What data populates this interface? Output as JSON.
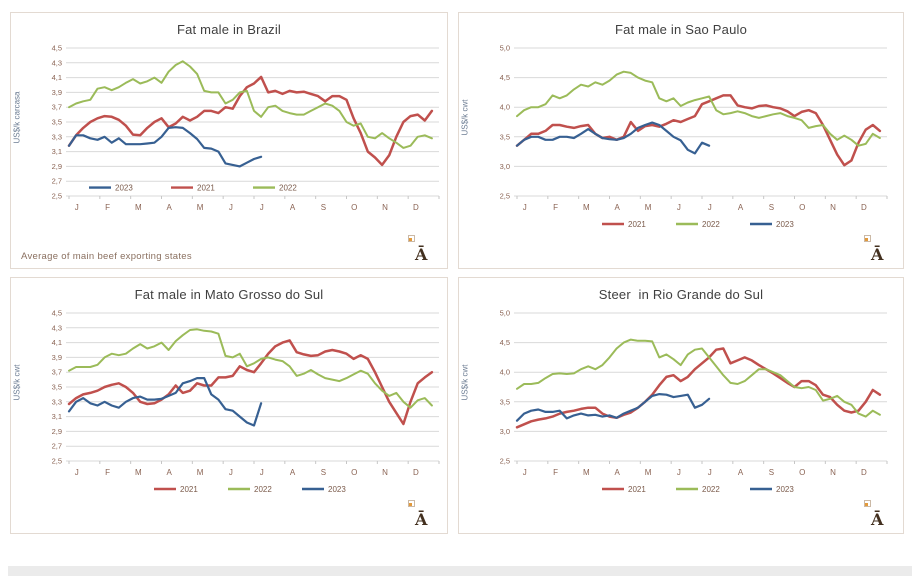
{
  "logo_glyph": "Ā",
  "colors": {
    "grid": "#d9d9d9",
    "axis_tick": "#c6c6c6",
    "tick_label": "#8a6353",
    "legend_label": "#7a5a4a",
    "title": "#404040",
    "y_axis_title": "#6f7f95",
    "panel_border": "#e3dad2",
    "logo": "#43301f",
    "bottom_band": "#ebebeb"
  },
  "chart_data": [
    {
      "type": "line",
      "title": "Fat male in Brazil",
      "ylabel": "US$/k carcasa",
      "xlabel": "",
      "ylim": [
        2.5,
        4.5
      ],
      "ytick_step": 0.2,
      "ytick_labels": [
        "2,5",
        "2,7",
        "2,9",
        "3,1",
        "3,3",
        "3,5",
        "3,7",
        "3,9",
        "4,1",
        "4,3",
        "4,5"
      ],
      "xtick_labels": [
        "J",
        "F",
        "M",
        "A",
        "M",
        "J",
        "J",
        "A",
        "S",
        "O",
        "N",
        "D"
      ],
      "weeks_per_year": 52,
      "grid": true,
      "legend_position": "inside-bottom-left",
      "legend_order": [
        "2023",
        "2021",
        "2022"
      ],
      "note": "Average  of main beef exporting states",
      "series": [
        {
          "name": "2021",
          "color": "#C0504D",
          "values": [
            3.18,
            3.32,
            3.42,
            3.5,
            3.55,
            3.58,
            3.57,
            3.53,
            3.45,
            3.33,
            3.32,
            3.42,
            3.5,
            3.55,
            3.43,
            3.48,
            3.57,
            3.52,
            3.57,
            3.65,
            3.65,
            3.62,
            3.7,
            3.68,
            3.85,
            3.97,
            4.02,
            4.11,
            3.9,
            3.92,
            3.88,
            3.92,
            3.9,
            3.91,
            3.88,
            3.85,
            3.78,
            3.85,
            3.85,
            3.8,
            3.55,
            3.35,
            3.1,
            3.02,
            2.92,
            3.05,
            3.3,
            3.5,
            3.58,
            3.6,
            3.52,
            3.65
          ]
        },
        {
          "name": "2022",
          "color": "#9BBB59",
          "values": [
            3.7,
            3.75,
            3.78,
            3.8,
            3.95,
            3.97,
            3.93,
            3.97,
            4.03,
            4.08,
            4.02,
            4.05,
            4.1,
            4.03,
            4.18,
            4.27,
            4.32,
            4.25,
            4.15,
            3.92,
            3.9,
            3.9,
            3.75,
            3.8,
            3.9,
            3.92,
            3.65,
            3.57,
            3.7,
            3.72,
            3.65,
            3.62,
            3.6,
            3.6,
            3.65,
            3.7,
            3.75,
            3.72,
            3.65,
            3.5,
            3.45,
            3.48,
            3.3,
            3.28,
            3.35,
            3.28,
            3.22,
            3.15,
            3.18,
            3.3,
            3.32,
            3.28
          ]
        },
        {
          "name": "2023",
          "color": "#376092",
          "values": [
            3.18,
            3.32,
            3.32,
            3.28,
            3.26,
            3.3,
            3.22,
            3.28,
            3.2,
            3.2,
            3.2,
            3.21,
            3.22,
            3.3,
            3.42,
            3.43,
            3.42,
            3.35,
            3.27,
            3.15,
            3.14,
            3.1,
            2.94,
            2.92,
            2.9,
            2.95,
            3.0,
            3.03
          ]
        }
      ]
    },
    {
      "type": "line",
      "title": "Fat male in Sao Paulo",
      "ylabel": "US$/k cwt",
      "xlabel": "",
      "ylim": [
        2.5,
        5.0
      ],
      "ytick_step": 0.5,
      "ytick_labels": [
        "2,5",
        "3,0",
        "3,5",
        "4,0",
        "4,5",
        "5,0"
      ],
      "xtick_labels": [
        "J",
        "F",
        "M",
        "A",
        "M",
        "J",
        "J",
        "A",
        "S",
        "O",
        "N",
        "D"
      ],
      "weeks_per_year": 52,
      "grid": true,
      "legend_position": "below-center",
      "legend_order": [
        "2021",
        "2022",
        "2023"
      ],
      "note": "",
      "series": [
        {
          "name": "2021",
          "color": "#C0504D",
          "values": [
            3.35,
            3.45,
            3.55,
            3.55,
            3.6,
            3.7,
            3.7,
            3.67,
            3.65,
            3.68,
            3.7,
            3.55,
            3.48,
            3.5,
            3.45,
            3.5,
            3.75,
            3.6,
            3.68,
            3.7,
            3.67,
            3.72,
            3.78,
            3.75,
            3.8,
            3.85,
            4.05,
            4.1,
            4.15,
            4.2,
            4.2,
            4.03,
            4.0,
            3.98,
            4.02,
            4.03,
            4.0,
            3.98,
            3.93,
            3.85,
            3.92,
            3.95,
            3.9,
            3.7,
            3.45,
            3.2,
            3.02,
            3.1,
            3.4,
            3.62,
            3.7,
            3.6
          ]
        },
        {
          "name": "2022",
          "color": "#9BBB59",
          "values": [
            3.85,
            3.95,
            4.0,
            4.0,
            4.05,
            4.2,
            4.15,
            4.2,
            4.3,
            4.38,
            4.35,
            4.42,
            4.38,
            4.45,
            4.55,
            4.6,
            4.58,
            4.5,
            4.45,
            4.42,
            4.15,
            4.1,
            4.15,
            4.02,
            4.08,
            4.12,
            4.15,
            4.18,
            3.95,
            3.88,
            3.9,
            3.93,
            3.9,
            3.85,
            3.82,
            3.85,
            3.88,
            3.9,
            3.85,
            3.82,
            3.78,
            3.65,
            3.68,
            3.7,
            3.55,
            3.45,
            3.52,
            3.45,
            3.35,
            3.38,
            3.55,
            3.48
          ]
        },
        {
          "name": "2023",
          "color": "#376092",
          "values": [
            3.35,
            3.45,
            3.5,
            3.5,
            3.45,
            3.45,
            3.5,
            3.5,
            3.48,
            3.55,
            3.63,
            3.55,
            3.48,
            3.46,
            3.45,
            3.48,
            3.55,
            3.65,
            3.7,
            3.74,
            3.7,
            3.6,
            3.5,
            3.44,
            3.28,
            3.22,
            3.4,
            3.35
          ]
        }
      ]
    },
    {
      "type": "line",
      "title": "Fat male in Mato Grosso do Sul",
      "ylabel": "US$/k cwt",
      "xlabel": "",
      "ylim": [
        2.5,
        4.5
      ],
      "ytick_step": 0.2,
      "ytick_labels": [
        "2,5",
        "2,7",
        "2,9",
        "3,1",
        "3,3",
        "3,5",
        "3,7",
        "3,9",
        "4,1",
        "4,3",
        "4,5"
      ],
      "xtick_labels": [
        "J",
        "F",
        "M",
        "A",
        "M",
        "J",
        "J",
        "A",
        "S",
        "O",
        "N",
        "D"
      ],
      "weeks_per_year": 52,
      "grid": true,
      "legend_position": "below-center",
      "legend_order": [
        "2021",
        "2022",
        "2023"
      ],
      "note": "",
      "series": [
        {
          "name": "2021",
          "color": "#C0504D",
          "values": [
            3.27,
            3.35,
            3.4,
            3.42,
            3.45,
            3.5,
            3.53,
            3.55,
            3.5,
            3.42,
            3.3,
            3.27,
            3.28,
            3.33,
            3.4,
            3.52,
            3.42,
            3.45,
            3.55,
            3.52,
            3.52,
            3.63,
            3.63,
            3.65,
            3.78,
            3.73,
            3.7,
            3.82,
            3.95,
            4.05,
            4.1,
            4.13,
            3.97,
            3.94,
            3.92,
            3.93,
            3.98,
            4.0,
            3.98,
            3.95,
            3.88,
            3.93,
            3.88,
            3.7,
            3.5,
            3.3,
            3.15,
            3.0,
            3.3,
            3.55,
            3.63,
            3.7
          ]
        },
        {
          "name": "2022",
          "color": "#9BBB59",
          "values": [
            3.72,
            3.77,
            3.77,
            3.77,
            3.8,
            3.9,
            3.95,
            3.93,
            3.95,
            4.02,
            4.08,
            4.02,
            4.05,
            4.1,
            4.0,
            4.12,
            4.2,
            4.27,
            4.28,
            4.26,
            4.25,
            4.22,
            3.92,
            3.9,
            3.95,
            3.78,
            3.82,
            3.88,
            3.9,
            3.87,
            3.85,
            3.78,
            3.65,
            3.68,
            3.73,
            3.67,
            3.62,
            3.6,
            3.58,
            3.62,
            3.67,
            3.72,
            3.68,
            3.55,
            3.45,
            3.38,
            3.42,
            3.3,
            3.22,
            3.32,
            3.35,
            3.25
          ]
        },
        {
          "name": "2023",
          "color": "#376092",
          "values": [
            3.17,
            3.3,
            3.35,
            3.28,
            3.25,
            3.3,
            3.25,
            3.22,
            3.3,
            3.35,
            3.37,
            3.33,
            3.33,
            3.34,
            3.38,
            3.42,
            3.55,
            3.58,
            3.62,
            3.62,
            3.4,
            3.33,
            3.2,
            3.18,
            3.1,
            3.02,
            2.98,
            3.28
          ]
        }
      ]
    },
    {
      "type": "line",
      "title": "Steer  in Rio Grande do Sul",
      "ylabel": "US$/k cwt",
      "xlabel": "",
      "ylim": [
        2.5,
        5.0
      ],
      "ytick_step": 0.5,
      "ytick_labels": [
        "2,5",
        "3,0",
        "3,5",
        "4,0",
        "4,5",
        "5,0"
      ],
      "xtick_labels": [
        "J",
        "F",
        "M",
        "A",
        "M",
        "J",
        "J",
        "A",
        "S",
        "O",
        "N",
        "D"
      ],
      "weeks_per_year": 52,
      "grid": true,
      "legend_position": "below-center",
      "legend_order": [
        "2021",
        "2022",
        "2023"
      ],
      "note": "",
      "series": [
        {
          "name": "2021",
          "color": "#C0504D",
          "values": [
            3.07,
            3.12,
            3.17,
            3.2,
            3.22,
            3.25,
            3.3,
            3.33,
            3.35,
            3.38,
            3.4,
            3.4,
            3.3,
            3.25,
            3.23,
            3.28,
            3.32,
            3.4,
            3.5,
            3.62,
            3.78,
            3.92,
            3.95,
            3.85,
            3.92,
            4.05,
            4.15,
            4.25,
            4.38,
            4.4,
            4.15,
            4.2,
            4.25,
            4.2,
            4.12,
            4.05,
            3.98,
            3.9,
            3.82,
            3.75,
            3.85,
            3.85,
            3.78,
            3.62,
            3.58,
            3.45,
            3.35,
            3.32,
            3.35,
            3.5,
            3.7,
            3.62
          ]
        },
        {
          "name": "2022",
          "color": "#9BBB59",
          "values": [
            3.72,
            3.8,
            3.8,
            3.82,
            3.9,
            3.97,
            3.98,
            3.97,
            3.98,
            4.05,
            4.1,
            4.05,
            4.12,
            4.25,
            4.4,
            4.5,
            4.55,
            4.53,
            4.53,
            4.52,
            4.25,
            4.3,
            4.22,
            4.12,
            4.3,
            4.38,
            4.4,
            4.25,
            4.1,
            3.95,
            3.82,
            3.8,
            3.85,
            3.95,
            4.05,
            4.05,
            4.0,
            3.95,
            3.85,
            3.75,
            3.73,
            3.75,
            3.7,
            3.52,
            3.55,
            3.6,
            3.5,
            3.45,
            3.3,
            3.25,
            3.35,
            3.28
          ]
        },
        {
          "name": "2023",
          "color": "#376092",
          "values": [
            3.18,
            3.3,
            3.35,
            3.37,
            3.33,
            3.33,
            3.35,
            3.22,
            3.27,
            3.3,
            3.27,
            3.28,
            3.25,
            3.27,
            3.23,
            3.3,
            3.35,
            3.4,
            3.5,
            3.6,
            3.63,
            3.62,
            3.58,
            3.6,
            3.62,
            3.4,
            3.45,
            3.55
          ]
        }
      ]
    }
  ]
}
